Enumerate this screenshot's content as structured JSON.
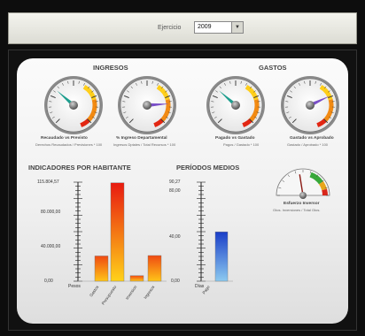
{
  "toolbar": {
    "label": "Ejercicio",
    "year": "2009"
  },
  "sections": {
    "ingresos": "INGRESOS",
    "gastos": "GASTOS",
    "indicadores": "INDICADORES POR HABITANTE",
    "periodos": "PERÍODOS MEDIOS"
  },
  "gauges": [
    {
      "caption": "Recaudado vs Previsto",
      "sub": "Derechos Recaudados / Previsiones * 100",
      "level": 0.32
    },
    {
      "caption": "% Ingreso Departamental",
      "sub": "Ingresos Dptales / Total Recursos * 100",
      "level": 0.82
    },
    {
      "caption": "Pagado vs Gastado",
      "sub": "Pagos / Gastado * 100",
      "level": 0.32
    },
    {
      "caption": "Gastado vs Aprobado",
      "sub": "Gastado / Aprobado * 100",
      "level": 0.74
    }
  ],
  "small_gauge": {
    "caption": "Esfuerzo Inversor",
    "sub": "Gtos. Inversiones / Total Gtos.",
    "level": 0.45
  },
  "chart_data": [
    {
      "type": "bar",
      "title": "INDICADORES POR HABITANTE",
      "ylabel": "Pesos",
      "ylim": [
        0,
        115804.57
      ],
      "yticks": [
        "115.804,57",
        "80.000,00",
        "40.000,00",
        "0,00"
      ],
      "categories": [
        "Gastos",
        "Presupuesto",
        "Inversion",
        "Ingresos"
      ],
      "values": [
        29500,
        115000,
        6500,
        30000
      ],
      "colors": [
        "orange",
        "red",
        "orange",
        "orange"
      ]
    },
    {
      "type": "bar",
      "title": "PERÍODOS MEDIOS",
      "ylabel": "Días",
      "ylim": [
        0,
        90.27
      ],
      "yticks": [
        "90,27",
        "80,00",
        "40,00",
        "0,00"
      ],
      "categories": [
        "Pago"
      ],
      "values": [
        45
      ],
      "colors": [
        "blue"
      ]
    }
  ]
}
